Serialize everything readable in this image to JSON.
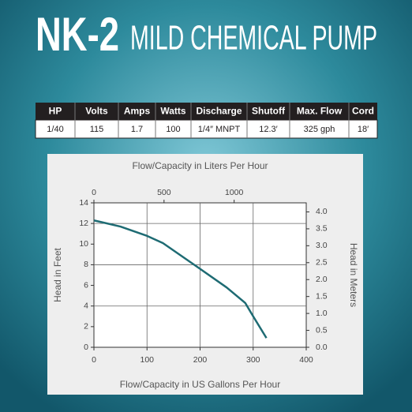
{
  "header": {
    "model": "NK-2",
    "title": "MILD CHEMICAL PUMP"
  },
  "table": {
    "header": [
      "HP",
      "Volts",
      "Amps",
      "Watts",
      "Discharge",
      "Shutoff",
      "Max. Flow",
      "Cord"
    ],
    "rows": [
      [
        "1/40",
        "115",
        "1.7",
        "100",
        "1/4″ MNPT",
        "12.3′",
        "325 gph",
        "18′"
      ]
    ]
  },
  "chart_data": {
    "type": "line",
    "x_label": "Flow/Capacity in US Gallons Per Hour",
    "x2_label": "Flow/Capacity in Liters Per Hour",
    "y_label": "Head in Feet",
    "y2_label": "Head in Meters",
    "x": [
      0,
      50,
      100,
      130,
      200,
      250,
      285,
      300,
      325
    ],
    "series": [
      {
        "color": "#1e6b73",
        "values": [
          12.3,
          11.7,
          10.8,
          10.1,
          7.6,
          5.8,
          4.3,
          3.0,
          0.9
        ]
      }
    ],
    "xlim": [
      0,
      400
    ],
    "xticks": [
      0,
      100,
      200,
      300,
      400
    ],
    "x2lim": [
      0,
      1514.16
    ],
    "x2ticks": [
      0,
      500,
      1000
    ],
    "ylim": [
      0,
      14
    ],
    "yticks": [
      0,
      2,
      4,
      6,
      8,
      10,
      12,
      14
    ],
    "y2lim": [
      0,
      4.2672
    ],
    "y2ticks": [
      {
        "value": 0,
        "label": "0.0"
      },
      0.5,
      {
        "value": 1,
        "label": "1.0"
      },
      1.5,
      {
        "value": 2,
        "label": "2.0"
      },
      2.5,
      {
        "value": 3,
        "label": "3.0"
      },
      3.5,
      {
        "value": 4,
        "label": "4.0"
      }
    ],
    "grid": true
  }
}
